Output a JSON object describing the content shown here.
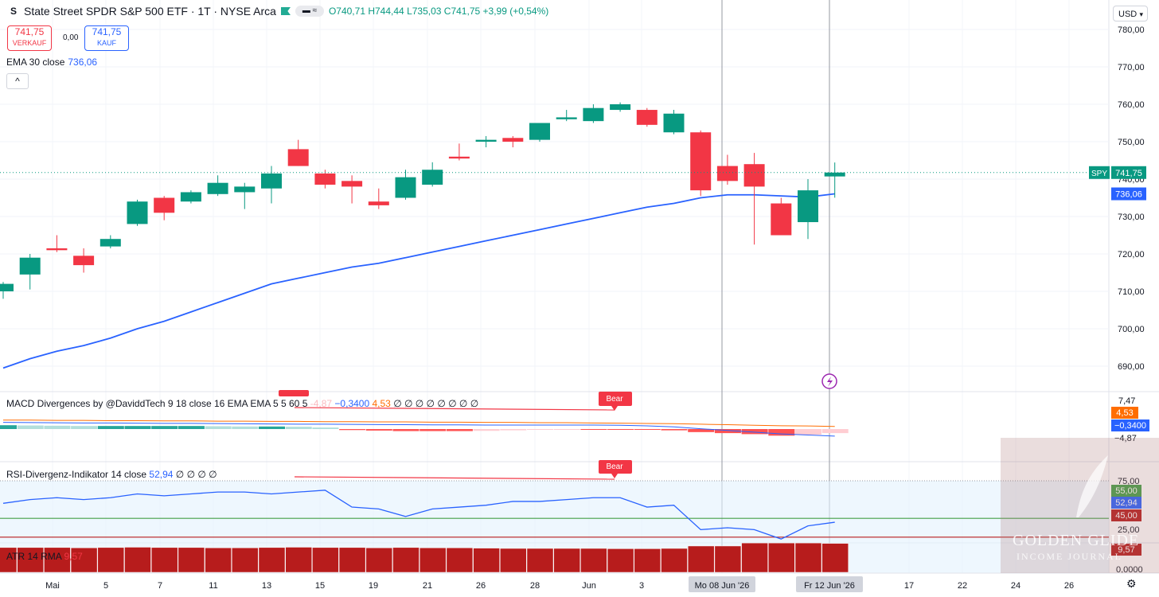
{
  "header": {
    "symbol_icon": "S",
    "title": "State Street SPDR S&P 500 ETF · 1T · NYSE Arca",
    "ohlc": {
      "o": "O740,71",
      "h": "H744,44",
      "l": "L735,03",
      "c": "C741,75",
      "change": "+3,99 (+0,54%)"
    },
    "pill": "▬ ≈"
  },
  "trade": {
    "sell_price": "741,75",
    "sell_label": "VERKAUF",
    "spread": "0,00",
    "buy_price": "741,75",
    "buy_label": "KAUF"
  },
  "ema": {
    "label": "EMA 30 close",
    "value": "736,06"
  },
  "collapse_icon": "^",
  "currency": "USD",
  "panes": {
    "macd": {
      "label": "MACD Divergences by @DaviddTech 9 18 close 16 EMA EMA 5 5 60 5",
      "hidden_val": "-4,87",
      "v1": "−0,3400",
      "v2": "4,53",
      "tail": "∅ ∅ ∅ ∅ ∅ ∅ ∅ ∅",
      "bear1": "Bear",
      "bear2": "Bear"
    },
    "rsi": {
      "label": "RSI-Divergenz-Indikator 14 close",
      "value": "52,94",
      "tail": "∅ ∅ ∅ ∅",
      "bear": "Bear"
    },
    "atr": {
      "label": "ATR 14 RMA",
      "value": "9,57"
    }
  },
  "watermark": {
    "line1": "GOLDEN GLIDE",
    "line2": "INCOME JOURNAL"
  },
  "colors": {
    "up": "#089981",
    "down": "#f23645",
    "ema": "#2962ff",
    "macd_signal": "#ff6d00",
    "atr": "#b71c1c",
    "rsi": "#2962ff",
    "bear": "#f23645"
  },
  "chart_data": [
    {
      "type": "candlestick",
      "title": "",
      "symbol": "SPY",
      "yticks": [
        690,
        700,
        710,
        720,
        730,
        740,
        750,
        760,
        770,
        780
      ],
      "ytick_labels": [
        "690,00",
        "700,00",
        "710,00",
        "720,00",
        "730,00",
        "740,00",
        "750,00",
        "760,00",
        "770,00",
        "780,00"
      ],
      "ylim": [
        682,
        783
      ],
      "x_labels": [
        "Mai",
        "5",
        "7",
        "11",
        "13",
        "15",
        "19",
        "21",
        "26",
        "28",
        "Jun",
        "3",
        "Mo 08 Jun '26",
        "Fr 12 Jun '26",
        "17",
        "22",
        "24",
        "26"
      ],
      "candles": [
        {
          "o": 710.0,
          "h": 712.5,
          "l": 708.0,
          "c": 712.0
        },
        {
          "o": 714.5,
          "h": 720.0,
          "l": 710.5,
          "c": 719.0
        },
        {
          "o": 721.5,
          "h": 725.0,
          "l": 720.5,
          "c": 721.0
        },
        {
          "o": 719.5,
          "h": 721.5,
          "l": 715.0,
          "c": 717.0
        },
        {
          "o": 722.0,
          "h": 725.0,
          "l": 721.5,
          "c": 724.0
        },
        {
          "o": 728.0,
          "h": 734.5,
          "l": 727.5,
          "c": 734.0
        },
        {
          "o": 735.0,
          "h": 735.5,
          "l": 729.0,
          "c": 731.0
        },
        {
          "o": 734.0,
          "h": 737.0,
          "l": 733.5,
          "c": 736.5
        },
        {
          "o": 736.0,
          "h": 741.0,
          "l": 735.5,
          "c": 739.0
        },
        {
          "o": 736.5,
          "h": 739.0,
          "l": 732.0,
          "c": 738.0
        },
        {
          "o": 737.5,
          "h": 743.5,
          "l": 733.5,
          "c": 741.5
        },
        {
          "o": 748.0,
          "h": 750.5,
          "l": 743.5,
          "c": 743.5
        },
        {
          "o": 741.5,
          "h": 742.5,
          "l": 737.5,
          "c": 738.5
        },
        {
          "o": 739.5,
          "h": 741.0,
          "l": 733.5,
          "c": 738.0
        },
        {
          "o": 734.0,
          "h": 737.5,
          "l": 732.0,
          "c": 733.0
        },
        {
          "o": 735.0,
          "h": 742.5,
          "l": 734.5,
          "c": 740.5
        },
        {
          "o": 738.5,
          "h": 744.5,
          "l": 738.0,
          "c": 742.5
        },
        {
          "o": 746.0,
          "h": 749.5,
          "l": 745.0,
          "c": 745.5
        },
        {
          "o": 750.0,
          "h": 751.5,
          "l": 748.5,
          "c": 750.5
        },
        {
          "o": 751.0,
          "h": 751.5,
          "l": 748.5,
          "c": 750.0
        },
        {
          "o": 750.5,
          "h": 755.0,
          "l": 750.0,
          "c": 755.0
        },
        {
          "o": 756.0,
          "h": 758.5,
          "l": 755.5,
          "c": 756.5
        },
        {
          "o": 755.5,
          "h": 760.0,
          "l": 755.0,
          "c": 759.0
        },
        {
          "o": 758.5,
          "h": 760.5,
          "l": 758.0,
          "c": 760.0
        },
        {
          "o": 758.5,
          "h": 759.0,
          "l": 754.0,
          "c": 754.5
        },
        {
          "o": 752.5,
          "h": 758.5,
          "l": 752.0,
          "c": 757.5
        },
        {
          "o": 752.5,
          "h": 753.0,
          "l": 735.5,
          "c": 737.0
        },
        {
          "o": 743.5,
          "h": 746.5,
          "l": 738.5,
          "c": 739.5
        },
        {
          "o": 744.0,
          "h": 747.0,
          "l": 722.5,
          "c": 738.0
        },
        {
          "o": 733.5,
          "h": 735.0,
          "l": 725.0,
          "c": 725.0
        },
        {
          "o": 728.5,
          "h": 740.0,
          "l": 724.0,
          "c": 737.0
        },
        {
          "o": 740.71,
          "h": 744.44,
          "l": 735.03,
          "c": 741.75
        }
      ],
      "ema30": [
        689.5,
        692.0,
        694.0,
        695.5,
        697.5,
        700.0,
        702.0,
        704.5,
        707.0,
        709.5,
        712.0,
        713.5,
        715.0,
        716.5,
        717.5,
        719.0,
        720.5,
        722.0,
        723.5,
        725.0,
        726.5,
        728.0,
        729.5,
        731.0,
        732.5,
        733.5,
        735.0,
        735.8,
        735.8,
        735.5,
        735.2,
        736.06
      ],
      "last_price_label": "741,75",
      "ema_label": "736,06",
      "symbol_tag": "SPY"
    },
    {
      "type": "histogram",
      "name": "MACD",
      "ytick_labels": [
        "7,47",
        "4,53",
        "−0,3400",
        "−4,87"
      ],
      "values": [
        1.5,
        1.4,
        1.3,
        1.2,
        1.2,
        1.2,
        1.2,
        1.2,
        1.1,
        1.0,
        1.0,
        0.9,
        0.6,
        -0.4,
        -0.6,
        -0.8,
        -0.8,
        -0.8,
        -0.7,
        -0.5,
        -0.3,
        -0.2,
        -0.2,
        -0.2,
        -0.3,
        -0.5,
        -1.2,
        -1.6,
        -2.0,
        -2.6,
        -2.2,
        -1.6
      ],
      "macd": [
        6.8,
        6.7,
        6.6,
        6.5,
        6.5,
        6.4,
        6.3,
        6.3,
        6.2,
        6.1,
        6.0,
        5.9,
        5.9,
        5.8,
        5.7,
        5.6,
        5.5,
        5.5,
        5.4,
        5.4,
        5.4,
        5.4,
        5.4,
        5.3,
        5.0,
        4.5,
        3.5,
        2.6,
        1.7,
        0.8,
        0.2,
        -0.34
      ],
      "signal": [
        7.0,
        7.0,
        6.9,
        6.9,
        6.8,
        6.8,
        6.7,
        6.7,
        6.6,
        6.6,
        6.5,
        6.5,
        6.4,
        6.4,
        6.3,
        6.3,
        6.2,
        6.2,
        6.1,
        6.1,
        6.0,
        6.0,
        5.9,
        5.8,
        5.7,
        5.6,
        5.4,
        5.2,
        5.0,
        4.8,
        4.7,
        4.53
      ]
    },
    {
      "type": "line",
      "name": "RSI",
      "ytick_labels": [
        "75,00",
        "55,00",
        "52,94",
        "45,00",
        "25,00"
      ],
      "values": [
        63,
        65,
        66,
        65,
        66,
        68,
        67,
        68,
        69,
        69,
        68,
        69,
        70,
        61,
        60,
        56,
        60,
        61,
        62,
        64,
        64,
        65,
        66,
        66,
        61,
        62,
        49,
        50,
        49,
        44,
        51,
        52.94
      ]
    },
    {
      "type": "bar",
      "name": "ATR 14 RMA",
      "ytick_labels": [
        "9,57",
        "0,0000"
      ],
      "values": [
        8.2,
        8.2,
        8.2,
        8.1,
        8.2,
        8.3,
        8.2,
        8.2,
        8.1,
        8.1,
        8.2,
        8.3,
        8.2,
        8.2,
        8.1,
        8.2,
        8.1,
        8.1,
        8.0,
        7.9,
        7.9,
        7.9,
        7.9,
        7.8,
        7.8,
        7.9,
        8.7,
        8.7,
        9.7,
        9.7,
        9.7,
        9.57
      ]
    }
  ]
}
